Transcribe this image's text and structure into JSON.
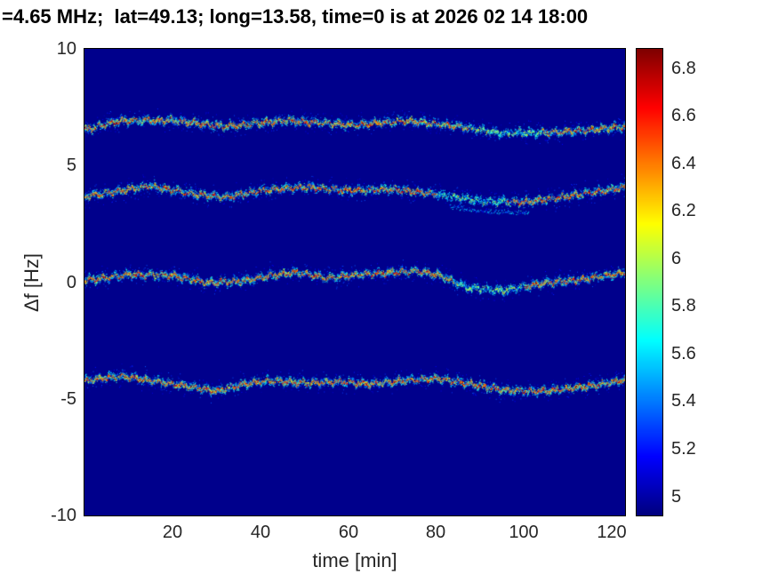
{
  "chart_data": {
    "type": "heatmap",
    "title": "=4.65 MHz;  lat=49.13; long=13.58, time=0 is at 2026 02 14 18:00",
    "xlabel": "time [min]",
    "ylabel": "Δf [Hz]",
    "xlim": [
      0,
      123
    ],
    "ylim": [
      -10,
      10
    ],
    "xticks": [
      20,
      40,
      60,
      80,
      100,
      120
    ],
    "xtick_labels": [
      "20",
      "40",
      "60",
      "80",
      "100",
      "120"
    ],
    "yticks": [
      10,
      5,
      0,
      -5,
      -10
    ],
    "ytick_labels": [
      "10",
      "5",
      "0",
      "-5",
      "-10"
    ],
    "grid": false,
    "legend": "none",
    "colormap": "jet",
    "background_color": "#00008B",
    "colorbar": {
      "position": "right",
      "vmin": 4.92,
      "vmax": 6.88,
      "ticks": [
        6.8,
        6.6,
        6.4,
        6.2,
        6,
        5.8,
        5.6,
        5.4,
        5.2,
        5
      ],
      "tick_labels": [
        "6.8",
        "6.6",
        "6.4",
        "6.2",
        "6",
        "5.8",
        "5.6",
        "5.4",
        "5.2",
        "5"
      ]
    },
    "series": [
      {
        "name": "doppler-trace-near-plus-6.8-Hz",
        "strength": 0.95,
        "faint": {
          "t0": 88,
          "t1": 104,
          "factor": 0.55
        },
        "ghost": null,
        "t": [
          0,
          8,
          20,
          32,
          46,
          61,
          73,
          85,
          95,
          108,
          118,
          123
        ],
        "f": [
          6.55,
          6.95,
          6.95,
          6.7,
          6.95,
          6.75,
          6.95,
          6.7,
          6.4,
          6.45,
          6.6,
          6.7
        ]
      },
      {
        "name": "doppler-trace-near-plus-3.9-Hz",
        "strength": 0.85,
        "faint": {
          "t0": 80,
          "t1": 96,
          "factor": 0.4
        },
        "ghost": {
          "t0": 83,
          "t1": 101,
          "offset": -0.45
        },
        "t": [
          0,
          10,
          15,
          25,
          32,
          40,
          50,
          60,
          70,
          80,
          90,
          100,
          110,
          120,
          123
        ],
        "f": [
          3.7,
          4.0,
          4.15,
          3.8,
          3.65,
          3.95,
          4.1,
          3.95,
          4.0,
          3.8,
          3.5,
          3.45,
          3.7,
          4.0,
          4.1
        ]
      },
      {
        "name": "doppler-trace-near-0-Hz",
        "strength": 0.95,
        "faint": {
          "t0": 84,
          "t1": 100,
          "factor": 0.45
        },
        "ghost": null,
        "t": [
          0,
          10,
          20,
          28,
          35,
          42,
          48,
          55,
          63,
          75,
          80,
          87,
          95,
          105,
          112,
          120,
          123
        ],
        "f": [
          0.1,
          0.35,
          0.3,
          0.0,
          0.05,
          0.3,
          0.45,
          0.2,
          0.35,
          0.5,
          0.35,
          -0.2,
          -0.35,
          0.0,
          0.1,
          0.35,
          0.45
        ]
      },
      {
        "name": "doppler-trace-near-minus-4.4-Hz",
        "strength": 1.0,
        "faint": null,
        "ghost": null,
        "t": [
          0,
          8,
          15,
          22,
          30,
          36,
          42,
          50,
          58,
          65,
          72,
          80,
          88,
          95,
          102,
          110,
          118,
          123
        ],
        "f": [
          -4.2,
          -4.0,
          -4.2,
          -4.4,
          -4.65,
          -4.35,
          -4.2,
          -4.3,
          -4.25,
          -4.35,
          -4.2,
          -4.1,
          -4.35,
          -4.6,
          -4.65,
          -4.55,
          -4.35,
          -4.15
        ]
      }
    ]
  }
}
